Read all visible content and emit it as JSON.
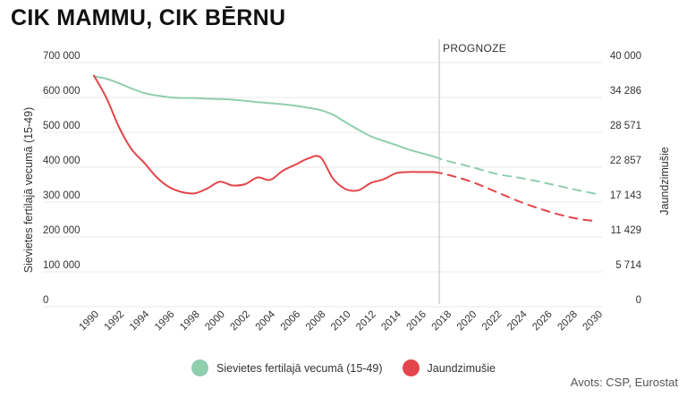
{
  "title": "CIK MAMMU, CIK BĒRNU",
  "source": "Avots: CSP, Eurostat",
  "colors": {
    "green": "#90ceae",
    "red": "#e3464a",
    "divider": "#c7c7c7",
    "grid": "#e9e9e9"
  },
  "chart_data": {
    "type": "line",
    "forecast_label": "PROGNOZE",
    "forecast_start": 2017,
    "xlim": [
      1990,
      2030
    ],
    "x_ticks": [
      "1990",
      "1992",
      "1994",
      "1996",
      "1998",
      "2000",
      "2002",
      "2004",
      "2006",
      "2008",
      "2010",
      "2012",
      "2014",
      "2016",
      "2018",
      "2020",
      "2022",
      "2024",
      "2026",
      "2028",
      "2030"
    ],
    "ylabel_left": "Sievietes fertilajā vecumā (15-49)",
    "ylabel_right": "Jaundzimušie",
    "ylim_left": [
      0,
      700000
    ],
    "ylim_right": [
      0,
      40000
    ],
    "left_ticks": [
      "0",
      "100 000",
      "200 000",
      "300 000",
      "400 000",
      "500 000",
      "600 000",
      "700 000"
    ],
    "right_ticks": [
      "0",
      "5 714",
      "11 429",
      "17 143",
      "22 857",
      "28 571",
      "34 286",
      "40 000"
    ],
    "series": [
      {
        "name": "Sievietes fertilajā vecumā (15-49)",
        "axis": "left",
        "color": "#90ceae",
        "x": [
          1990,
          1991,
          1992,
          1993,
          1994,
          1995,
          1996,
          1997,
          1998,
          1999,
          2000,
          2001,
          2002,
          2003,
          2004,
          2005,
          2006,
          2007,
          2008,
          2009,
          2010,
          2011,
          2012,
          2013,
          2014,
          2015,
          2016,
          2017
        ],
        "values": [
          640000,
          633000,
          620000,
          605000,
          592000,
          585000,
          580000,
          578000,
          578000,
          576000,
          575000,
          573000,
          570000,
          566000,
          563000,
          560000,
          556000,
          550000,
          543000,
          530000,
          508000,
          487000,
          468000,
          455000,
          443000,
          430000,
          420000,
          410000
        ]
      },
      {
        "name": "Jaundzimušie",
        "axis": "right",
        "color": "#e3464a",
        "x": [
          1990,
          1991,
          1992,
          1993,
          1994,
          1995,
          1996,
          1997,
          1998,
          1999,
          2000,
          2001,
          2002,
          2003,
          2004,
          2005,
          2006,
          2007,
          2008,
          2009,
          2010,
          2011,
          2012,
          2013,
          2014,
          2015,
          2016,
          2017
        ],
        "values": [
          36700,
          33000,
          28200,
          24600,
          22400,
          20000,
          18400,
          17600,
          17400,
          18200,
          19300,
          18700,
          18900,
          20000,
          19600,
          21100,
          22100,
          23100,
          23300,
          19800,
          18100,
          17900,
          19100,
          19700,
          20700,
          20900,
          20900,
          20900
        ]
      },
      {
        "name": "Sievietes fertilajā vecumā (15-49)",
        "axis": "left",
        "color": "#90ceae",
        "dashed": true,
        "x": [
          2017,
          2018,
          2020,
          2022,
          2024,
          2026,
          2028,
          2030
        ],
        "values": [
          410000,
          398000,
          380000,
          360000,
          348000,
          333000,
          317000,
          302000
        ]
      },
      {
        "name": "Jaundzimušie",
        "axis": "right",
        "color": "#e3464a",
        "dashed": true,
        "x": [
          2017,
          2018,
          2020,
          2022,
          2024,
          2026,
          2028,
          2030
        ],
        "values": [
          20900,
          20500,
          19300,
          17600,
          15900,
          14500,
          13400,
          12800
        ]
      }
    ],
    "legend": [
      {
        "label": "Sievietes fertilajā vecumā (15-49)",
        "color": "#90ceae"
      },
      {
        "label": "Jaundzimušie",
        "color": "#e3464a"
      }
    ],
    "legend_position": "bottom-center"
  }
}
